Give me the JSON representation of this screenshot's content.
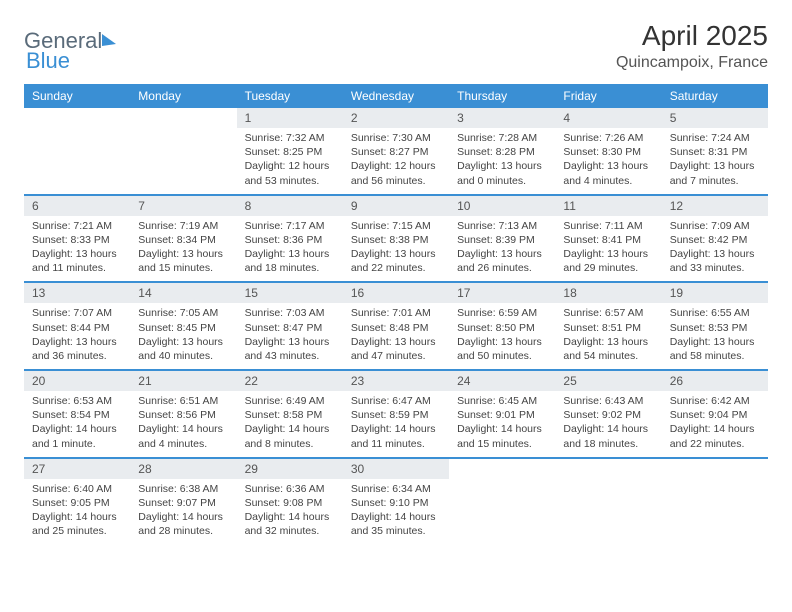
{
  "logo": {
    "part1": "General",
    "part2": "Blue"
  },
  "title": "April 2025",
  "location": "Quincampoix, France",
  "weekday_headers": [
    "Sunday",
    "Monday",
    "Tuesday",
    "Wednesday",
    "Thursday",
    "Friday",
    "Saturday"
  ],
  "colors": {
    "header_bg": "#3a8fd4",
    "header_text": "#ffffff",
    "daynum_bg": "#e9ecef",
    "row_border": "#3a8fd4",
    "text": "#333333",
    "logo_gray": "#5a6b7a",
    "logo_blue": "#3a8fd4"
  },
  "weeks": [
    [
      {
        "n": "",
        "sr": "",
        "ss": "",
        "dl": "",
        "empty": true
      },
      {
        "n": "",
        "sr": "",
        "ss": "",
        "dl": "",
        "empty": true
      },
      {
        "n": "1",
        "sr": "Sunrise: 7:32 AM",
        "ss": "Sunset: 8:25 PM",
        "dl": "Daylight: 12 hours and 53 minutes."
      },
      {
        "n": "2",
        "sr": "Sunrise: 7:30 AM",
        "ss": "Sunset: 8:27 PM",
        "dl": "Daylight: 12 hours and 56 minutes."
      },
      {
        "n": "3",
        "sr": "Sunrise: 7:28 AM",
        "ss": "Sunset: 8:28 PM",
        "dl": "Daylight: 13 hours and 0 minutes."
      },
      {
        "n": "4",
        "sr": "Sunrise: 7:26 AM",
        "ss": "Sunset: 8:30 PM",
        "dl": "Daylight: 13 hours and 4 minutes."
      },
      {
        "n": "5",
        "sr": "Sunrise: 7:24 AM",
        "ss": "Sunset: 8:31 PM",
        "dl": "Daylight: 13 hours and 7 minutes."
      }
    ],
    [
      {
        "n": "6",
        "sr": "Sunrise: 7:21 AM",
        "ss": "Sunset: 8:33 PM",
        "dl": "Daylight: 13 hours and 11 minutes."
      },
      {
        "n": "7",
        "sr": "Sunrise: 7:19 AM",
        "ss": "Sunset: 8:34 PM",
        "dl": "Daylight: 13 hours and 15 minutes."
      },
      {
        "n": "8",
        "sr": "Sunrise: 7:17 AM",
        "ss": "Sunset: 8:36 PM",
        "dl": "Daylight: 13 hours and 18 minutes."
      },
      {
        "n": "9",
        "sr": "Sunrise: 7:15 AM",
        "ss": "Sunset: 8:38 PM",
        "dl": "Daylight: 13 hours and 22 minutes."
      },
      {
        "n": "10",
        "sr": "Sunrise: 7:13 AM",
        "ss": "Sunset: 8:39 PM",
        "dl": "Daylight: 13 hours and 26 minutes."
      },
      {
        "n": "11",
        "sr": "Sunrise: 7:11 AM",
        "ss": "Sunset: 8:41 PM",
        "dl": "Daylight: 13 hours and 29 minutes."
      },
      {
        "n": "12",
        "sr": "Sunrise: 7:09 AM",
        "ss": "Sunset: 8:42 PM",
        "dl": "Daylight: 13 hours and 33 minutes."
      }
    ],
    [
      {
        "n": "13",
        "sr": "Sunrise: 7:07 AM",
        "ss": "Sunset: 8:44 PM",
        "dl": "Daylight: 13 hours and 36 minutes."
      },
      {
        "n": "14",
        "sr": "Sunrise: 7:05 AM",
        "ss": "Sunset: 8:45 PM",
        "dl": "Daylight: 13 hours and 40 minutes."
      },
      {
        "n": "15",
        "sr": "Sunrise: 7:03 AM",
        "ss": "Sunset: 8:47 PM",
        "dl": "Daylight: 13 hours and 43 minutes."
      },
      {
        "n": "16",
        "sr": "Sunrise: 7:01 AM",
        "ss": "Sunset: 8:48 PM",
        "dl": "Daylight: 13 hours and 47 minutes."
      },
      {
        "n": "17",
        "sr": "Sunrise: 6:59 AM",
        "ss": "Sunset: 8:50 PM",
        "dl": "Daylight: 13 hours and 50 minutes."
      },
      {
        "n": "18",
        "sr": "Sunrise: 6:57 AM",
        "ss": "Sunset: 8:51 PM",
        "dl": "Daylight: 13 hours and 54 minutes."
      },
      {
        "n": "19",
        "sr": "Sunrise: 6:55 AM",
        "ss": "Sunset: 8:53 PM",
        "dl": "Daylight: 13 hours and 58 minutes."
      }
    ],
    [
      {
        "n": "20",
        "sr": "Sunrise: 6:53 AM",
        "ss": "Sunset: 8:54 PM",
        "dl": "Daylight: 14 hours and 1 minute."
      },
      {
        "n": "21",
        "sr": "Sunrise: 6:51 AM",
        "ss": "Sunset: 8:56 PM",
        "dl": "Daylight: 14 hours and 4 minutes."
      },
      {
        "n": "22",
        "sr": "Sunrise: 6:49 AM",
        "ss": "Sunset: 8:58 PM",
        "dl": "Daylight: 14 hours and 8 minutes."
      },
      {
        "n": "23",
        "sr": "Sunrise: 6:47 AM",
        "ss": "Sunset: 8:59 PM",
        "dl": "Daylight: 14 hours and 11 minutes."
      },
      {
        "n": "24",
        "sr": "Sunrise: 6:45 AM",
        "ss": "Sunset: 9:01 PM",
        "dl": "Daylight: 14 hours and 15 minutes."
      },
      {
        "n": "25",
        "sr": "Sunrise: 6:43 AM",
        "ss": "Sunset: 9:02 PM",
        "dl": "Daylight: 14 hours and 18 minutes."
      },
      {
        "n": "26",
        "sr": "Sunrise: 6:42 AM",
        "ss": "Sunset: 9:04 PM",
        "dl": "Daylight: 14 hours and 22 minutes."
      }
    ],
    [
      {
        "n": "27",
        "sr": "Sunrise: 6:40 AM",
        "ss": "Sunset: 9:05 PM",
        "dl": "Daylight: 14 hours and 25 minutes."
      },
      {
        "n": "28",
        "sr": "Sunrise: 6:38 AM",
        "ss": "Sunset: 9:07 PM",
        "dl": "Daylight: 14 hours and 28 minutes."
      },
      {
        "n": "29",
        "sr": "Sunrise: 6:36 AM",
        "ss": "Sunset: 9:08 PM",
        "dl": "Daylight: 14 hours and 32 minutes."
      },
      {
        "n": "30",
        "sr": "Sunrise: 6:34 AM",
        "ss": "Sunset: 9:10 PM",
        "dl": "Daylight: 14 hours and 35 minutes."
      },
      {
        "n": "",
        "sr": "",
        "ss": "",
        "dl": "",
        "empty": true
      },
      {
        "n": "",
        "sr": "",
        "ss": "",
        "dl": "",
        "empty": true
      },
      {
        "n": "",
        "sr": "",
        "ss": "",
        "dl": "",
        "empty": true
      }
    ]
  ]
}
